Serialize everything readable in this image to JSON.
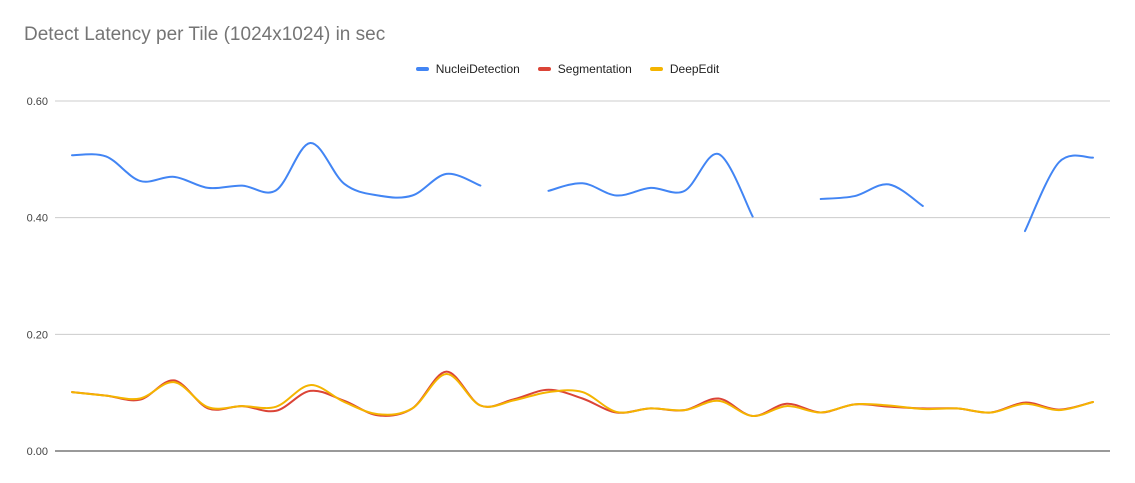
{
  "chart_data": {
    "type": "line",
    "title": "Detect Latency per Tile (1024x1024) in sec",
    "xlabel": "",
    "ylabel": "",
    "ylim": [
      0,
      0.6
    ],
    "yticks": [
      "0.00",
      "0.20",
      "0.40",
      "0.60"
    ],
    "y_tick_values": [
      0,
      0.2,
      0.4,
      0.6
    ],
    "grid": true,
    "legend_position": "top-center",
    "smooth": true,
    "x": [
      1,
      2,
      3,
      4,
      5,
      6,
      7,
      8,
      9,
      10,
      11,
      12,
      13,
      14,
      15,
      16,
      17,
      18,
      19,
      20,
      21,
      22,
      23,
      24,
      25,
      26,
      27,
      28,
      29,
      30,
      31
    ],
    "series": [
      {
        "name": "NucleiDetection",
        "color": "#4285f4",
        "values": [
          0.507,
          0.505,
          0.463,
          0.47,
          0.451,
          0.455,
          0.447,
          0.528,
          0.458,
          0.438,
          0.438,
          0.475,
          0.455,
          null,
          0.446,
          0.459,
          0.438,
          0.451,
          0.446,
          0.509,
          0.402,
          null,
          0.432,
          0.437,
          0.457,
          0.42,
          null,
          null,
          0.377,
          0.495,
          0.503
        ]
      },
      {
        "name": "Segmentation",
        "color": "#db4437",
        "values": [
          0.101,
          0.095,
          0.088,
          0.121,
          0.073,
          0.077,
          0.069,
          0.103,
          0.086,
          0.061,
          0.073,
          0.136,
          0.078,
          0.089,
          0.105,
          0.09,
          0.066,
          0.073,
          0.07,
          0.09,
          0.06,
          0.081,
          0.066,
          0.08,
          0.076,
          0.073,
          0.073,
          0.066,
          0.083,
          0.071,
          0.084
        ]
      },
      {
        "name": "DeepEdit",
        "color": "#f4b400",
        "values": [
          0.101,
          0.095,
          0.09,
          0.118,
          0.075,
          0.077,
          0.076,
          0.113,
          0.084,
          0.063,
          0.073,
          0.132,
          0.078,
          0.087,
          0.101,
          0.101,
          0.067,
          0.073,
          0.07,
          0.086,
          0.06,
          0.077,
          0.066,
          0.08,
          0.078,
          0.072,
          0.073,
          0.066,
          0.081,
          0.07,
          0.084
        ]
      }
    ]
  }
}
